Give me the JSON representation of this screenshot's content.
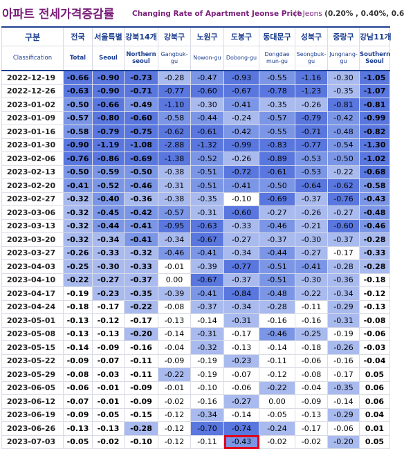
{
  "title": {
    "korean": "아파트 전세가격증감률",
    "english": "Changing Rate of Apartment Jeonse Price",
    "note_prefix": "(* Jeons",
    "note_values": "(0.20% , 0.40%, 0.6"
  },
  "columns": [
    {
      "kr": "구분",
      "en": "Classification"
    },
    {
      "kr": "전국",
      "en": "Total"
    },
    {
      "kr": "서울특별",
      "en": "Seoul"
    },
    {
      "kr": "강북14개",
      "en": "Northern seoul"
    },
    {
      "kr": "강북구",
      "en": "Gangbuk-gu"
    },
    {
      "kr": "노원구",
      "en": "Nowon-gu"
    },
    {
      "kr": "도봉구",
      "en": "Dobong-gu"
    },
    {
      "kr": "동대문구",
      "en": "Dongdae mun-gu"
    },
    {
      "kr": "성북구",
      "en": "Seongbuk-gu"
    },
    {
      "kr": "중랑구",
      "en": "Jungnang-gu"
    },
    {
      "kr": "강남11개",
      "en": "Southern Seoul"
    }
  ],
  "rows": [
    {
      "date": "2022-12-19",
      "v": [
        "-0.66",
        "-0.90",
        "-0.73",
        "-0.28",
        "-0.47",
        "-0.93",
        "-0.55",
        "-1.16",
        "-0.30",
        "-1.05"
      ]
    },
    {
      "date": "2022-12-26",
      "v": [
        "-0.63",
        "-0.90",
        "-0.71",
        "-0.77",
        "-0.60",
        "-0.67",
        "-0.78",
        "-1.23",
        "-0.35",
        "-1.07"
      ]
    },
    {
      "date": "2023-01-02",
      "v": [
        "-0.50",
        "-0.66",
        "-0.49",
        "-1.10",
        "-0.30",
        "-0.41",
        "-0.35",
        "-0.26",
        "-0.81",
        "-0.81"
      ]
    },
    {
      "date": "2023-01-09",
      "v": [
        "-0.57",
        "-0.80",
        "-0.60",
        "-0.58",
        "-0.44",
        "-0.24",
        "-0.57",
        "-0.79",
        "-0.42",
        "-0.99"
      ]
    },
    {
      "date": "2023-01-16",
      "v": [
        "-0.58",
        "-0.79",
        "-0.75",
        "-0.62",
        "-0.61",
        "-0.42",
        "-0.55",
        "-0.71",
        "-0.48",
        "-0.82"
      ]
    },
    {
      "date": "2023-01-30",
      "v": [
        "-0.90",
        "-1.19",
        "-1.08",
        "-2.88",
        "-1.32",
        "-0.99",
        "-0.83",
        "-0.77",
        "-0.54",
        "-1.30"
      ]
    },
    {
      "date": "2023-02-06",
      "v": [
        "-0.76",
        "-0.86",
        "-0.69",
        "-1.38",
        "-0.52",
        "-0.26",
        "-0.89",
        "-0.53",
        "-0.50",
        "-1.02"
      ]
    },
    {
      "date": "2023-02-13",
      "v": [
        "-0.50",
        "-0.59",
        "-0.50",
        "-0.38",
        "-0.51",
        "-0.72",
        "-0.61",
        "-0.53",
        "-0.22",
        "-0.68"
      ]
    },
    {
      "date": "2023-02-20",
      "v": [
        "-0.41",
        "-0.52",
        "-0.46",
        "-0.31",
        "-0.51",
        "-0.41",
        "-0.50",
        "-0.64",
        "-0.62",
        "-0.58"
      ]
    },
    {
      "date": "2023-02-27",
      "v": [
        "-0.32",
        "-0.40",
        "-0.36",
        "-0.38",
        "-0.35",
        "-0.10",
        "-0.69",
        "-0.37",
        "-0.76",
        "-0.43"
      ]
    },
    {
      "date": "2023-03-06",
      "v": [
        "-0.32",
        "-0.45",
        "-0.42",
        "-0.57",
        "-0.31",
        "-0.60",
        "-0.27",
        "-0.26",
        "-0.27",
        "-0.48"
      ]
    },
    {
      "date": "2023-03-13",
      "v": [
        "-0.32",
        "-0.44",
        "-0.41",
        "-0.95",
        "-0.63",
        "-0.33",
        "-0.46",
        "-0.21",
        "-0.60",
        "-0.46"
      ]
    },
    {
      "date": "2023-03-20",
      "v": [
        "-0.32",
        "-0.34",
        "-0.41",
        "-0.34",
        "-0.67",
        "-0.27",
        "-0.37",
        "-0.30",
        "-0.37",
        "-0.28"
      ]
    },
    {
      "date": "2023-03-27",
      "v": [
        "-0.26",
        "-0.33",
        "-0.32",
        "-0.46",
        "-0.41",
        "-0.34",
        "-0.44",
        "-0.27",
        "-0.17",
        "-0.33"
      ]
    },
    {
      "date": "2023-04-03",
      "v": [
        "-0.25",
        "-0.30",
        "-0.33",
        "-0.01",
        "-0.39",
        "-0.77",
        "-0.51",
        "-0.41",
        "-0.28",
        "-0.28"
      ]
    },
    {
      "date": "2023-04-10",
      "v": [
        "-0.22",
        "-0.27",
        "-0.37",
        "0.00",
        "-0.67",
        "-0.37",
        "-0.51",
        "-0.30",
        "-0.36",
        "-0.18"
      ]
    },
    {
      "date": "2023-04-17",
      "v": [
        "-0.19",
        "-0.23",
        "-0.35",
        "-0.39",
        "-0.41",
        "-0.84",
        "-0.48",
        "-0.22",
        "-0.34",
        "-0.12"
      ]
    },
    {
      "date": "2023-04-24",
      "v": [
        "-0.18",
        "-0.17",
        "-0.22",
        "-0.08",
        "-0.37",
        "-0.34",
        "-0.28",
        "-0.11",
        "-0.29",
        "-0.13"
      ]
    },
    {
      "date": "2023-05-01",
      "v": [
        "-0.13",
        "-0.12",
        "-0.17",
        "-0.13",
        "-0.14",
        "-0.31",
        "-0.16",
        "-0.16",
        "-0.31",
        "-0.08"
      ]
    },
    {
      "date": "2023-05-08",
      "v": [
        "-0.13",
        "-0.13",
        "-0.20",
        "-0.14",
        "-0.31",
        "-0.17",
        "-0.46",
        "-0.25",
        "-0.19",
        "-0.06"
      ]
    },
    {
      "date": "2023-05-15",
      "v": [
        "-0.14",
        "-0.09",
        "-0.16",
        "-0.04",
        "-0.32",
        "-0.13",
        "-0.14",
        "-0.18",
        "-0.26",
        "-0.03"
      ]
    },
    {
      "date": "2023-05-22",
      "v": [
        "-0.09",
        "-0.07",
        "-0.11",
        "-0.09",
        "-0.19",
        "-0.23",
        "-0.11",
        "-0.06",
        "-0.16",
        "-0.04"
      ]
    },
    {
      "date": "2023-05-29",
      "v": [
        "-0.08",
        "-0.03",
        "-0.11",
        "-0.22",
        "-0.19",
        "-0.07",
        "-0.12",
        "-0.08",
        "-0.17",
        "0.05"
      ]
    },
    {
      "date": "2023-06-05",
      "v": [
        "-0.06",
        "-0.01",
        "-0.09",
        "-0.01",
        "-0.10",
        "-0.06",
        "-0.22",
        "-0.04",
        "-0.35",
        "0.06"
      ]
    },
    {
      "date": "2023-06-12",
      "v": [
        "-0.07",
        "-0.01",
        "-0.09",
        "-0.02",
        "-0.16",
        "-0.27",
        "0.00",
        "-0.09",
        "-0.14",
        "0.06"
      ]
    },
    {
      "date": "2023-06-19",
      "v": [
        "-0.09",
        "-0.05",
        "-0.15",
        "-0.12",
        "-0.34",
        "-0.14",
        "-0.05",
        "-0.13",
        "-0.29",
        "0.04"
      ]
    },
    {
      "date": "2023-06-26",
      "v": [
        "-0.13",
        "-0.13",
        "-0.28",
        "-0.12",
        "-0.70",
        "-0.74",
        "-0.24",
        "-0.17",
        "-0.06",
        "0.01"
      ]
    },
    {
      "date": "2023-07-03",
      "v": [
        "-0.05",
        "-0.02",
        "-0.10",
        "-0.12",
        "-0.11",
        "-0.43",
        "-0.02",
        "-0.02",
        "-0.20",
        "0.05"
      ]
    }
  ],
  "highlight": {
    "row": 27,
    "col": 6
  },
  "colors": {
    "title": "#7a1f7a",
    "header_text": "#1c3f8f",
    "shade_light": "#d3dcf6",
    "shade_mid": "#a9baee",
    "shade_dark": "#7b96e6",
    "shade_deepest": "#5977de",
    "highlight_border": "#e0001b"
  }
}
